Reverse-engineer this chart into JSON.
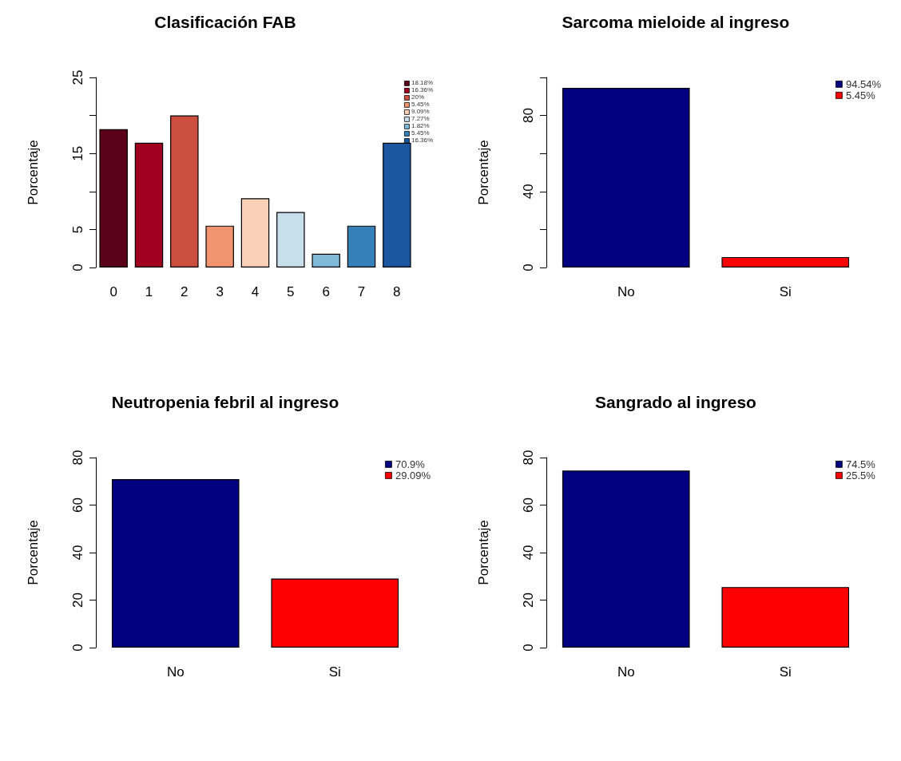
{
  "chart_data": [
    {
      "type": "bar",
      "title": "Clasificación FAB",
      "ylabel": "Porcentaje",
      "categories": [
        "0",
        "1",
        "2",
        "3",
        "4",
        "5",
        "6",
        "7",
        "8"
      ],
      "stacked": true,
      "legend": "top right",
      "ylim": [
        0,
        25
      ],
      "yticks": [
        0,
        5,
        {
          "value": 10,
          "label": null
        },
        15,
        {
          "value": 20,
          "label": null
        },
        25
      ],
      "grid": false,
      "series": [
        {
          "name": "18.18%",
          "color": "#5a0018",
          "values": [
            18.2,
            null,
            null,
            null,
            null,
            null,
            null,
            null,
            null
          ]
        },
        {
          "name": "16.36%",
          "color": "#a0001e",
          "values": [
            null,
            16.4,
            null,
            null,
            null,
            null,
            null,
            null,
            null
          ]
        },
        {
          "name": "20%",
          "color": "#cb4e3f",
          "values": [
            null,
            null,
            20,
            null,
            null,
            null,
            null,
            null,
            null
          ]
        },
        {
          "name": "5.45%",
          "color": "#f09570",
          "values": [
            null,
            null,
            null,
            5.5,
            null,
            null,
            null,
            null,
            null
          ]
        },
        {
          "name": "9.09%",
          "color": "#fad0b8",
          "values": [
            null,
            null,
            null,
            null,
            9.1,
            null,
            null,
            null,
            null
          ]
        },
        {
          "name": "7.27%",
          "color": "#c8dfec",
          "values": [
            null,
            null,
            null,
            null,
            null,
            7.3,
            null,
            null,
            null
          ]
        },
        {
          "name": "1.82%",
          "color": "#80b8d8",
          "values": [
            null,
            null,
            null,
            null,
            null,
            null,
            1.8,
            null,
            null
          ]
        },
        {
          "name": "5.45%",
          "color": "#3680b8",
          "values": [
            null,
            null,
            null,
            null,
            null,
            null,
            null,
            5.5,
            null
          ]
        },
        {
          "name": "16.36%",
          "color": "#1c56a0",
          "values": [
            null,
            null,
            null,
            null,
            null,
            null,
            null,
            null,
            16.4
          ]
        }
      ]
    },
    {
      "type": "bar",
      "title": "Sarcoma mieloide al ingreso",
      "ylabel": "Porcentaje",
      "categories": [
        "No",
        "Si"
      ],
      "stacked": true,
      "legend": "top right",
      "ylim": [
        0,
        100
      ],
      "yticks": [
        0,
        {
          "value": 20,
          "label": null
        },
        40,
        {
          "value": 60,
          "label": null
        },
        80,
        {
          "value": 100,
          "label": null
        }
      ],
      "grid": false,
      "series": [
        {
          "name": "94.54%",
          "color": "#000080",
          "values": [
            94.5,
            null
          ]
        },
        {
          "name": "5.45%",
          "color": "#ff0000",
          "values": [
            null,
            5.5
          ]
        }
      ]
    },
    {
      "type": "bar",
      "title": "Neutropenia febril al ingreso",
      "ylabel": "Porcentaje",
      "categories": [
        "No",
        "Si"
      ],
      "stacked": true,
      "legend": "top right",
      "ylim": [
        0,
        80
      ],
      "yticks": [
        0,
        20,
        40,
        60,
        80
      ],
      "grid": false,
      "series": [
        {
          "name": "70.9%",
          "color": "#000080",
          "values": [
            70.9,
            null
          ]
        },
        {
          "name": "29.09%",
          "color": "#ff0000",
          "values": [
            null,
            29.1
          ]
        }
      ]
    },
    {
      "type": "bar",
      "title": "Sangrado al ingreso",
      "ylabel": "Porcentaje",
      "categories": [
        "No",
        "Si"
      ],
      "stacked": true,
      "legend": "top right",
      "ylim": [
        0,
        80
      ],
      "yticks": [
        0,
        20,
        40,
        60,
        80
      ],
      "grid": false,
      "series": [
        {
          "name": "74.5%",
          "color": "#000080",
          "values": [
            74.5,
            null
          ]
        },
        {
          "name": "25.5%",
          "color": "#ff0000",
          "values": [
            null,
            25.5
          ]
        }
      ]
    }
  ]
}
